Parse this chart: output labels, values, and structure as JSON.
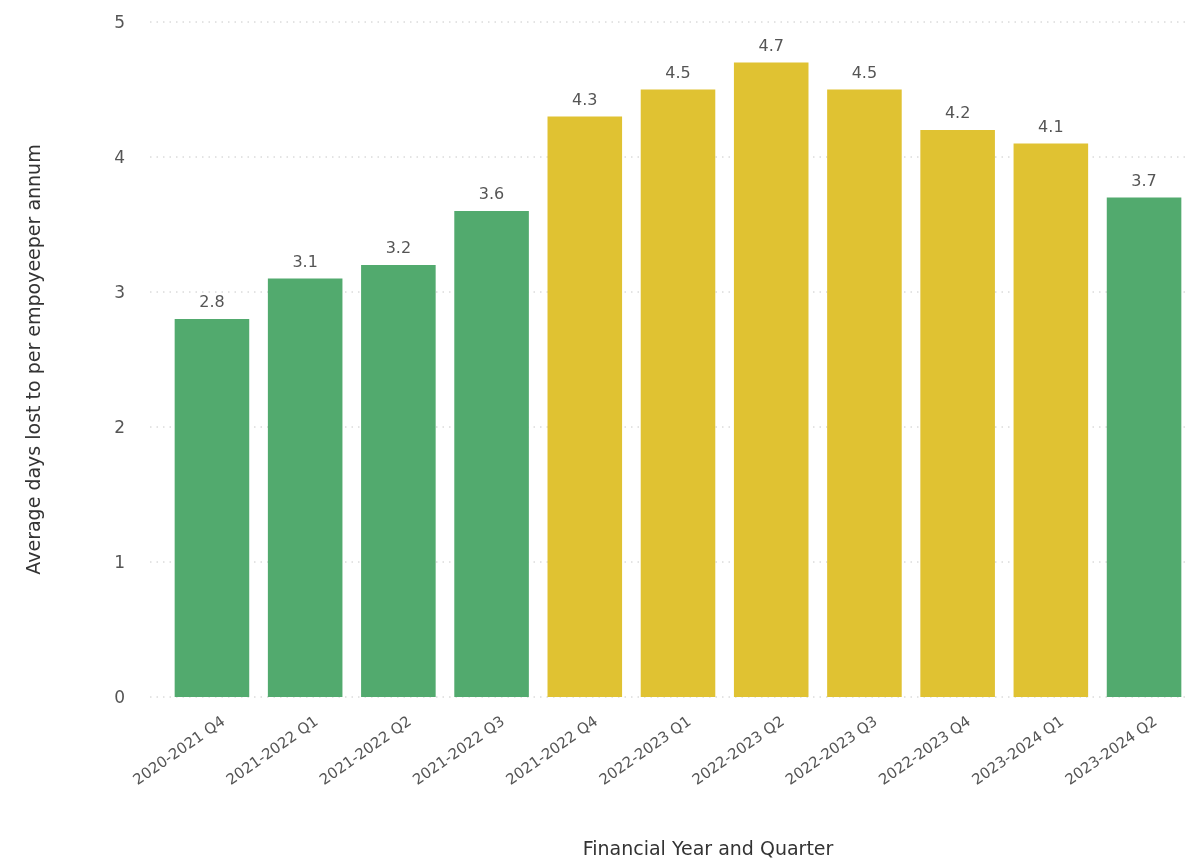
{
  "chart_data": {
    "type": "bar",
    "xlabel": "Financial Year and Quarter",
    "ylabel": "Average days lost to per empoyeeper annum",
    "categories": [
      "2020-2021 Q4",
      "2021-2022 Q1",
      "2021-2022 Q2",
      "2021-2022 Q3",
      "2021-2022 Q4",
      "2022-2023 Q1",
      "2022-2023 Q2",
      "2022-2023 Q3",
      "2022-2023 Q4",
      "2023-2024 Q1",
      "2023-2024 Q2"
    ],
    "values": [
      2.8,
      3.1,
      3.2,
      3.6,
      4.3,
      4.5,
      4.7,
      4.5,
      4.2,
      4.1,
      3.7
    ],
    "colors": [
      "#52aa6e",
      "#52aa6e",
      "#52aa6e",
      "#52aa6e",
      "#e0c232",
      "#e0c232",
      "#e0c232",
      "#e0c232",
      "#e0c232",
      "#e0c232",
      "#52aa6e"
    ],
    "ylim": [
      0,
      5
    ],
    "yticks": [
      0,
      1,
      2,
      3,
      4,
      5
    ],
    "grid": "y",
    "data_labels": true
  }
}
